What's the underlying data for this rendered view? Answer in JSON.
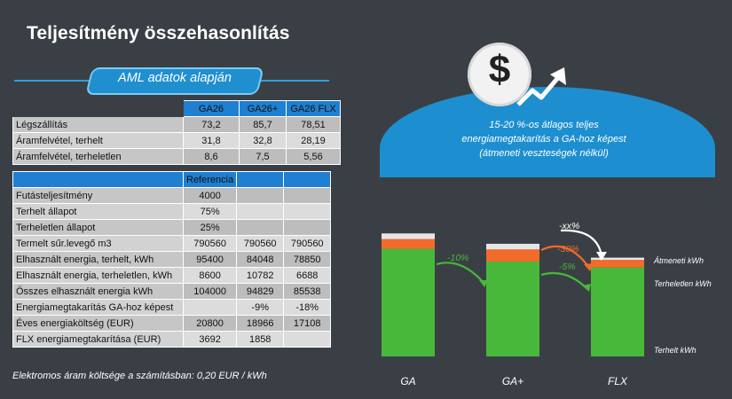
{
  "title": "Teljesítmény összehasonlítás",
  "subtitle": "AML adatok alapján",
  "table1": {
    "headers": [
      "",
      "GA26",
      "GA26+",
      "GA26 FLX"
    ],
    "rows": [
      {
        "label": "Légszállítás",
        "values": [
          "73,2",
          "85,7",
          "78,51"
        ]
      },
      {
        "label": "Áramfelvétel, terhelt",
        "values": [
          "31,8",
          "32,8",
          "28,19"
        ]
      },
      {
        "label": "Áramfelvétel, terheletlen",
        "values": [
          "8,6",
          "7,5",
          "5,56"
        ]
      }
    ]
  },
  "table2": {
    "headers": [
      "",
      "Referencia",
      "",
      ""
    ],
    "rows": [
      {
        "label": "Futásteljesítmény",
        "values": [
          "4000",
          "",
          ""
        ]
      },
      {
        "label": "Terhelt állapot",
        "values": [
          "75%",
          "",
          ""
        ]
      },
      {
        "label": "Terheletlen állapot",
        "values": [
          "25%",
          "",
          ""
        ]
      },
      {
        "label": "Termelt sűr.levegő m3",
        "values": [
          "790560",
          "790560",
          "790560"
        ]
      },
      {
        "label": "Elhasznált energia, terhelt, kWh",
        "values": [
          "95400",
          "84048",
          "78850"
        ]
      },
      {
        "label": "Elhasznált energia, terheletlen, kWh",
        "values": [
          "8600",
          "10782",
          "6688"
        ]
      },
      {
        "label": "Összes elhasznált energia kWh",
        "values": [
          "104000",
          "94829",
          "85538"
        ]
      },
      {
        "label": "Energiamegtakarítás GA-hoz képest",
        "values": [
          "",
          "-9%",
          "-18%"
        ]
      },
      {
        "label": "Éves energiaköltség (EUR)",
        "values": [
          "20800",
          "18966",
          "17108"
        ]
      },
      {
        "label": "FLX energiamegtakarítása (EUR)",
        "values": [
          "3692",
          "1858",
          ""
        ]
      }
    ]
  },
  "footnote": "Elektromos áram költsége a számításban:  0,20 EUR / kWh",
  "callout": {
    "line1": "15-20 %-os átlagos teljes",
    "line2": "energiamegtakarítás a GA-hoz képest",
    "line3": "(átmeneti veszteségek nélkül)",
    "icon": "dollar-coin-icon"
  },
  "chart_data": {
    "type": "bar",
    "stacked": true,
    "categories": [
      "GA",
      "GA+",
      "FLX"
    ],
    "series": [
      {
        "name": "Terhelt kWh",
        "color": "#48b83a",
        "values": [
          95400,
          84048,
          78850
        ]
      },
      {
        "name": "Terheletlen kWh",
        "color": "#f26b2a",
        "values": [
          8600,
          10782,
          6688
        ]
      },
      {
        "name": "Átmeneti kWh",
        "color": "#e6e6e6",
        "values": [
          5000,
          5000,
          2000
        ]
      }
    ],
    "annotations": [
      "-10%",
      "-xx%",
      "-30%",
      "-5%"
    ],
    "colors": {
      "green": "#48b83a",
      "orange": "#f26b2a",
      "arrow_red": "#f26b2a"
    }
  }
}
